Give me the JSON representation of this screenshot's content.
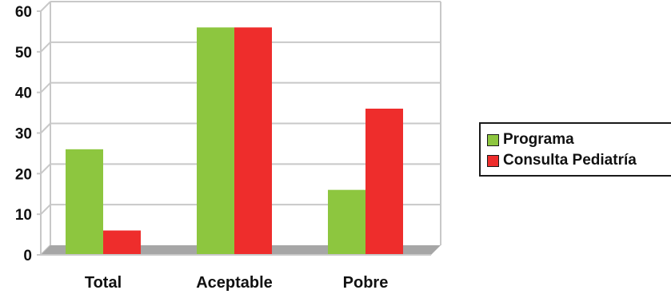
{
  "chart_data": {
    "type": "bar",
    "categories": [
      "Total",
      "Aceptable",
      "Pobre"
    ],
    "series": [
      {
        "name": "Programa",
        "values": [
          26,
          56,
          16
        ],
        "color": "#8dc63f"
      },
      {
        "name": "Consulta Pediatría",
        "values": [
          6,
          56,
          36
        ],
        "color": "#ee2d2c"
      }
    ],
    "yticks": [
      "0",
      "10",
      "20",
      "30",
      "40",
      "50",
      "60"
    ],
    "ylim": [
      0,
      60
    ],
    "grid": true,
    "legend_position": "right",
    "title": "",
    "xlabel": "",
    "ylabel": ""
  },
  "colors": {
    "grid": "#c8c8c8",
    "floor": "#a6a6a6"
  }
}
